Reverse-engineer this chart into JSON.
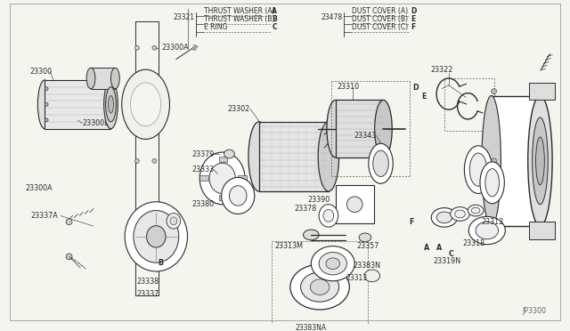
{
  "figure_width": 6.4,
  "figure_height": 3.72,
  "dpi": 100,
  "background_color": "#f5f5f0",
  "line_color": "#2a2a2a",
  "footer_code": "JP3300",
  "label_fontsize": 5.8,
  "legend_fontsize": 5.5,
  "legend": {
    "left_num": "23321",
    "left_items": [
      {
        "name": "THRUST WASHER (A)",
        "code": "A"
      },
      {
        "name": "THRUST WASHER (B)",
        "code": "B"
      },
      {
        "name": "E RING",
        "code": "C"
      }
    ],
    "right_num": "23478",
    "right_items": [
      {
        "name": "DUST COVER (A)",
        "code": "D"
      },
      {
        "name": "DUST COVER (B)",
        "code": "E"
      },
      {
        "name": "DUST COVER (C)",
        "code": "F"
      }
    ]
  }
}
